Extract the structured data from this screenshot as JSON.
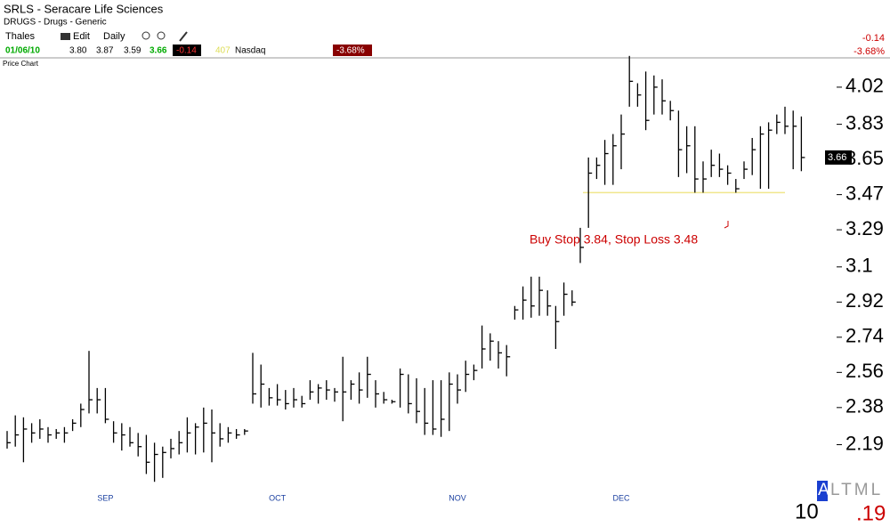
{
  "header": {
    "symbol": "SRLS - Seracare Life Sciences",
    "industry": "DRUGS - Drugs - Generic",
    "menu": [
      "Thales",
      "Edit",
      "Daily"
    ],
    "quote": {
      "date": "01/06/10",
      "open": "3.80",
      "high": "3.87",
      "low": "3.59",
      "last": "3.66",
      "change": "-0.14",
      "volume": "407",
      "exchange": "Nasdaq",
      "percent": "-3.68%"
    },
    "right": {
      "change": "-0.14",
      "percent": "-3.68%"
    },
    "panel": "Price Chart"
  },
  "footer": {
    "count": "10",
    "tab_active": "A",
    "tab_rest": "LTML",
    "value": ".19"
  },
  "chart_data": {
    "type": "ohlc",
    "color": "#000000",
    "categories": [
      null,
      null,
      null,
      null,
      null,
      null,
      null,
      null,
      null,
      null,
      null,
      null,
      "SEP",
      null,
      null,
      null,
      null,
      null,
      null,
      null,
      null,
      null,
      null,
      null,
      null,
      null,
      null,
      null,
      null,
      null,
      null,
      null,
      null,
      "OCT",
      null,
      null,
      null,
      null,
      null,
      null,
      null,
      null,
      null,
      null,
      null,
      null,
      null,
      null,
      null,
      null,
      null,
      null,
      null,
      null,
      null,
      "NOV",
      null,
      null,
      null,
      null,
      null,
      null,
      null,
      null,
      null,
      null,
      null,
      null,
      null,
      null,
      null,
      null,
      null,
      null,
      null,
      "DEC",
      null,
      null,
      null,
      null,
      null,
      null,
      null,
      null,
      null,
      null,
      null,
      null,
      null,
      null,
      null,
      null,
      null,
      null,
      null,
      null,
      null,
      null
    ],
    "high": [
      2.26,
      2.34,
      2.33,
      2.3,
      2.32,
      2.28,
      2.27,
      2.28,
      2.32,
      2.4,
      2.67,
      2.48,
      2.48,
      2.31,
      2.3,
      2.28,
      2.25,
      2.24,
      2.2,
      2.18,
      2.22,
      2.26,
      2.33,
      2.3,
      2.38,
      2.37,
      2.3,
      2.28,
      2.27,
      2.27,
      2.66,
      2.6,
      2.48,
      2.5,
      2.47,
      2.48,
      2.44,
      2.52,
      2.5,
      2.52,
      2.48,
      2.64,
      2.52,
      2.56,
      2.64,
      2.52,
      2.46,
      2.42,
      2.58,
      2.55,
      2.53,
      2.48,
      2.52,
      2.52,
      2.56,
      2.55,
      2.62,
      2.6,
      2.8,
      2.76,
      2.72,
      2.7,
      2.9,
      3.0,
      3.05,
      3.05,
      2.98,
      2.9,
      3.02,
      2.98,
      3.3,
      3.66,
      3.66,
      3.75,
      3.78,
      3.88,
      4.18,
      4.04,
      4.1,
      4.08,
      4.06,
      3.95,
      3.9,
      3.82,
      3.82,
      3.64,
      3.7,
      3.68,
      3.62,
      3.55,
      3.64,
      3.76,
      3.82,
      3.84,
      3.88,
      3.92,
      3.9,
      3.87
    ],
    "low": [
      2.17,
      2.18,
      2.1,
      2.2,
      2.22,
      2.2,
      2.22,
      2.2,
      2.26,
      2.28,
      2.35,
      2.35,
      2.3,
      2.2,
      2.16,
      2.18,
      2.13,
      2.04,
      2.0,
      2.02,
      2.12,
      2.14,
      2.15,
      2.14,
      2.15,
      2.1,
      2.18,
      2.2,
      2.22,
      2.24,
      2.4,
      2.38,
      2.39,
      2.39,
      2.37,
      2.38,
      2.38,
      2.42,
      2.4,
      2.42,
      2.41,
      2.31,
      2.42,
      2.4,
      2.43,
      2.38,
      2.4,
      2.4,
      2.38,
      2.35,
      2.3,
      2.24,
      2.24,
      2.23,
      2.26,
      2.4,
      2.46,
      2.52,
      2.58,
      2.62,
      2.58,
      2.54,
      2.83,
      2.83,
      2.84,
      2.85,
      2.85,
      2.68,
      2.85,
      2.9,
      3.12,
      3.3,
      3.55,
      3.52,
      3.52,
      3.6,
      3.92,
      3.92,
      3.8,
      3.88,
      3.88,
      3.85,
      3.56,
      3.58,
      3.48,
      3.48,
      3.56,
      3.56,
      3.52,
      3.48,
      3.55,
      3.57,
      3.5,
      3.5,
      3.78,
      3.78,
      3.6,
      3.59
    ],
    "close": [
      2.2,
      2.24,
      2.27,
      2.25,
      2.27,
      2.24,
      2.25,
      2.25,
      2.3,
      2.37,
      2.42,
      2.42,
      2.32,
      2.25,
      2.24,
      2.2,
      2.18,
      2.1,
      2.14,
      2.15,
      2.17,
      2.2,
      2.25,
      2.28,
      2.3,
      2.25,
      2.22,
      2.25,
      2.24,
      2.26,
      2.45,
      2.5,
      2.43,
      2.42,
      2.4,
      2.42,
      2.4,
      2.46,
      2.48,
      2.47,
      2.46,
      2.46,
      2.5,
      2.47,
      2.55,
      2.45,
      2.42,
      2.41,
      2.55,
      2.4,
      2.36,
      2.3,
      2.27,
      2.32,
      2.5,
      2.47,
      2.55,
      2.57,
      2.68,
      2.72,
      2.66,
      2.64,
      2.88,
      2.93,
      2.9,
      2.98,
      2.9,
      2.82,
      2.96,
      2.92,
      3.2,
      3.58,
      3.62,
      3.68,
      3.72,
      3.78,
      4.05,
      3.98,
      3.85,
      4.02,
      3.95,
      3.9,
      3.7,
      3.72,
      3.55,
      3.55,
      3.62,
      3.6,
      3.58,
      3.5,
      3.6,
      3.7,
      3.78,
      3.8,
      3.84,
      3.82,
      3.82,
      3.66
    ],
    "ylim": [
      1.96,
      4.17
    ],
    "yticks": [
      2.19,
      2.38,
      2.56,
      2.74,
      2.92,
      3.1,
      3.29,
      3.47,
      3.65,
      3.83,
      4.02
    ],
    "hline": {
      "value": 3.48,
      "color": "#f0e68c"
    },
    "annotation": {
      "text": "Buy Stop 3.84, Stop Loss 3.48",
      "color": "#cc0000"
    }
  }
}
